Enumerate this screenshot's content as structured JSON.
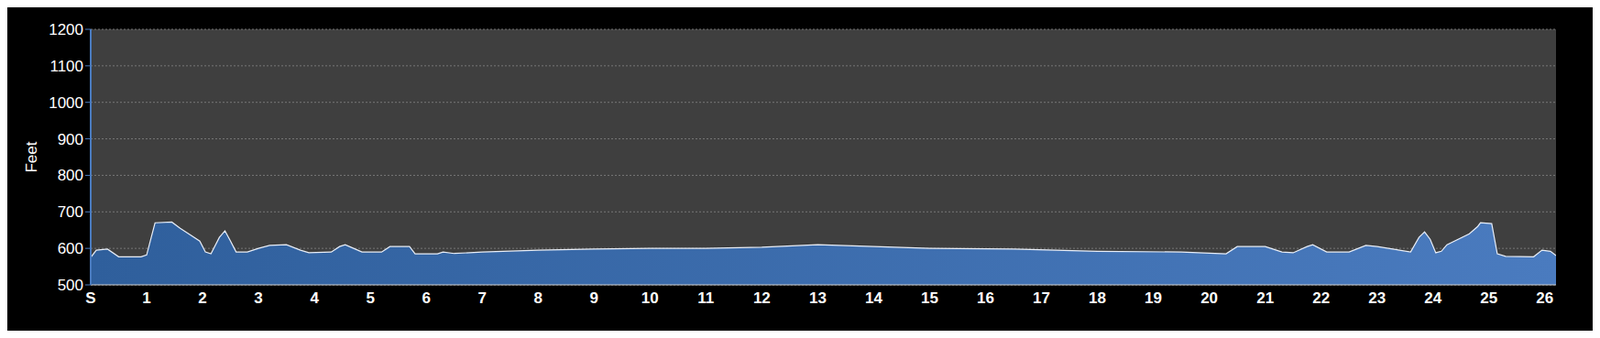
{
  "chart_data": {
    "type": "area",
    "y_label": "Feet",
    "color": "#4a7bbf",
    "grid": true,
    "x": [
      0,
      0.1,
      0.3,
      0.5,
      0.9,
      1.0,
      1.15,
      1.45,
      1.6,
      1.95,
      2.05,
      2.15,
      2.3,
      2.4,
      2.5,
      2.6,
      2.8,
      3.0,
      3.2,
      3.5,
      3.75,
      3.9,
      4.3,
      4.45,
      4.55,
      4.7,
      4.85,
      5.2,
      5.35,
      5.7,
      5.8,
      6.2,
      6.3,
      6.5,
      7.0,
      8.0,
      9.0,
      10.0,
      11.0,
      12.0,
      13.0,
      14.0,
      15.0,
      16.5,
      18.0,
      19.5,
      20.3,
      20.5,
      21.0,
      21.3,
      21.5,
      21.75,
      21.85,
      22.1,
      22.5,
      22.8,
      23.0,
      23.4,
      23.6,
      23.75,
      23.85,
      23.95,
      24.05,
      24.15,
      24.25,
      24.65,
      24.8,
      24.85,
      25.05,
      25.15,
      25.3,
      25.8,
      25.95,
      26.1,
      26.2
    ],
    "values": [
      575,
      595,
      598,
      577,
      577,
      582,
      670,
      672,
      655,
      620,
      590,
      585,
      630,
      648,
      620,
      590,
      590,
      600,
      608,
      610,
      595,
      588,
      590,
      605,
      610,
      600,
      590,
      590,
      605,
      605,
      585,
      585,
      590,
      586,
      590,
      595,
      598,
      600,
      600,
      603,
      610,
      605,
      600,
      598,
      592,
      590,
      585,
      605,
      605,
      590,
      588,
      605,
      610,
      590,
      590,
      608,
      605,
      595,
      590,
      630,
      645,
      625,
      588,
      592,
      610,
      640,
      660,
      670,
      668,
      585,
      578,
      577,
      595,
      592,
      580
    ],
    "xlim": [
      0,
      26.2
    ],
    "xticks": [
      {
        "value": 0,
        "label": "S"
      },
      1,
      2,
      3,
      4,
      5,
      6,
      7,
      8,
      9,
      10,
      11,
      12,
      13,
      14,
      15,
      16,
      17,
      18,
      19,
      20,
      21,
      22,
      23,
      24,
      25,
      26
    ],
    "ylim": [
      500,
      1200
    ],
    "yticks": [
      500,
      600,
      700,
      800,
      900,
      1000,
      1100,
      1200
    ]
  }
}
